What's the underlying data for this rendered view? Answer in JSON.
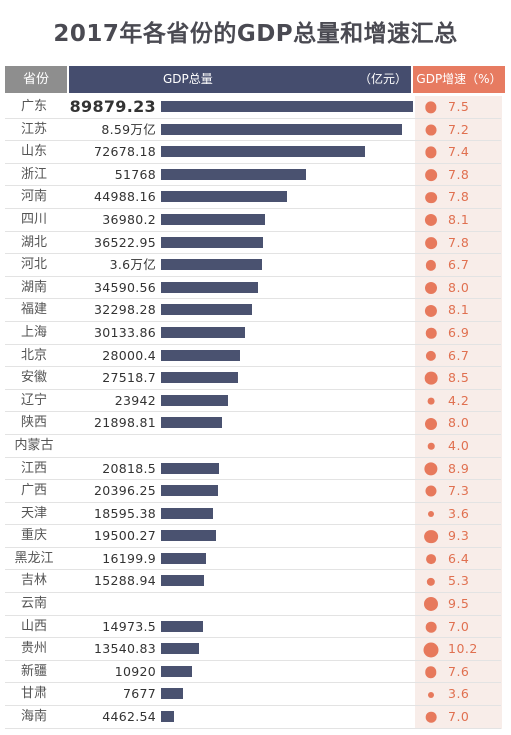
{
  "title": "2017年各省份的GDP总量和增速汇总",
  "header": {
    "province": "省份",
    "gdp": "GDP总量",
    "unit": "（亿元）",
    "growth": "GDP增速（%）"
  },
  "colors": {
    "bar": "#4a5270",
    "dot": "#e7795c",
    "growth_bg": "#f8ede9",
    "header_gdp": "#454d6e",
    "header_growth": "#e77b61",
    "header_province": "#8e8e8e"
  },
  "chart_data": {
    "type": "bar",
    "title": "2017年各省份的GDP总量和增速汇总",
    "xlabel": "省份",
    "ylabel": "GDP总量（亿元）",
    "categories": [
      "广东",
      "江苏",
      "山东",
      "浙江",
      "河南",
      "四川",
      "湖北",
      "河北",
      "湖南",
      "福建",
      "上海",
      "北京",
      "安徽",
      "辽宁",
      "陕西",
      "内蒙古",
      "江西",
      "广西",
      "天津",
      "重庆",
      "黑龙江",
      "吉林",
      "云南",
      "山西",
      "贵州",
      "新疆",
      "甘肃",
      "海南"
    ],
    "series": [
      {
        "name": "GDP总量",
        "values": [
          89879.23,
          85900,
          72678.18,
          51768,
          44988.16,
          36980.2,
          36522.95,
          36000,
          34590.56,
          32298.28,
          30133.86,
          28000.4,
          27518.7,
          23942,
          21898.81,
          null,
          20818.5,
          20396.25,
          18595.38,
          19500.27,
          16199.9,
          15288.94,
          null,
          14973.5,
          13540.83,
          10920,
          7677,
          4462.54
        ]
      },
      {
        "name": "GDP增速",
        "values": [
          7.5,
          7.2,
          7.4,
          7.8,
          7.8,
          8.1,
          7.8,
          6.7,
          8.0,
          8.1,
          6.9,
          6.7,
          8.5,
          4.2,
          8.0,
          4.0,
          8.9,
          7.3,
          3.6,
          9.3,
          6.4,
          5.3,
          9.5,
          7.0,
          10.2,
          7.6,
          3.6,
          7.0
        ]
      }
    ],
    "labels": [
      "89879.23",
      "8.59万亿",
      "72678.18",
      "51768",
      "44988.16",
      "36980.2",
      "36522.95",
      "3.6万亿",
      "34590.56",
      "32298.28",
      "30133.86",
      "28000.4",
      "27518.7",
      "23942",
      "21898.81",
      "",
      "20818.5",
      "20396.25",
      "18595.38",
      "19500.27",
      "16199.9",
      "15288.94",
      "",
      "14973.5",
      "13540.83",
      "10920",
      "7677",
      "4462.54"
    ],
    "growth_labels": [
      "7.5",
      "7.2",
      "7.4",
      "7.8",
      "7.8",
      "8.1",
      "7.8",
      "6.7",
      "8.0",
      "8.1",
      "6.9",
      "6.7",
      "8.5",
      "4.2",
      "8.0",
      "4.0",
      "8.9",
      "7.3",
      "3.6",
      "9.3",
      "6.4",
      "5.3",
      "9.5",
      "7.0",
      "10.2",
      "7.6",
      "3.6",
      "7.0"
    ],
    "ylim": [
      0,
      89879.23
    ]
  }
}
